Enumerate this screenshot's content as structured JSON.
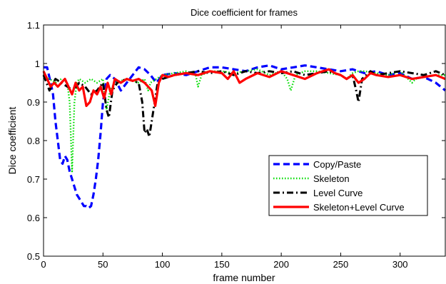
{
  "chart_data": {
    "type": "line",
    "title": "Dice coefficient for frames",
    "xlabel": "frame number",
    "ylabel": "Dice coefficient",
    "xlim": [
      0,
      338
    ],
    "ylim": [
      0.5,
      1.1
    ],
    "xticks": [
      0,
      50,
      100,
      150,
      200,
      250,
      300
    ],
    "yticks": [
      0.5,
      0.6,
      0.7,
      0.8,
      0.9,
      1,
      1.1
    ],
    "xtick_labels": [
      "0",
      "50",
      "100",
      "150",
      "200",
      "250",
      "300"
    ],
    "ytick_labels": [
      "0.5",
      "0.6",
      "0.7",
      "0.8",
      "0.9",
      "1",
      "1.1"
    ],
    "grid": false,
    "legend_position": "lower-right",
    "series": [
      {
        "name": "Copy/Paste",
        "color": "#0000ff",
        "style": "dashed",
        "x": [
          0,
          3,
          6,
          8,
          10,
          12,
          14,
          16,
          18,
          20,
          22,
          24,
          26,
          28,
          30,
          32,
          34,
          36,
          38,
          40,
          42,
          44,
          46,
          48,
          50,
          53,
          56,
          60,
          65,
          70,
          75,
          80,
          85,
          90,
          95,
          100,
          110,
          120,
          130,
          140,
          150,
          160,
          170,
          180,
          190,
          200,
          210,
          220,
          230,
          240,
          250,
          260,
          270,
          280,
          290,
          300,
          310,
          320,
          330,
          338
        ],
        "y": [
          0.99,
          0.99,
          0.95,
          0.92,
          0.85,
          0.8,
          0.75,
          0.74,
          0.76,
          0.75,
          0.72,
          0.7,
          0.68,
          0.66,
          0.65,
          0.64,
          0.63,
          0.63,
          0.625,
          0.63,
          0.66,
          0.7,
          0.75,
          0.82,
          0.9,
          0.96,
          0.97,
          0.96,
          0.93,
          0.95,
          0.97,
          0.99,
          0.985,
          0.97,
          0.95,
          0.97,
          0.975,
          0.97,
          0.98,
          0.99,
          0.99,
          0.985,
          0.98,
          0.99,
          0.995,
          0.985,
          0.99,
          0.995,
          0.99,
          0.985,
          0.98,
          0.985,
          0.975,
          0.98,
          0.97,
          0.975,
          0.96,
          0.965,
          0.95,
          0.93
        ]
      },
      {
        "name": "Skeleton",
        "color": "#00dd00",
        "style": "dotted",
        "x": [
          0,
          5,
          10,
          15,
          20,
          22,
          24,
          26,
          28,
          30,
          35,
          40,
          45,
          50,
          53,
          56,
          60,
          70,
          80,
          85,
          88,
          90,
          95,
          100,
          110,
          120,
          128,
          130,
          133,
          140,
          150,
          160,
          170,
          180,
          190,
          200,
          205,
          208,
          212,
          220,
          230,
          240,
          250,
          255,
          260,
          265,
          270,
          280,
          290,
          300,
          310,
          313,
          320,
          330,
          338
        ],
        "y": [
          0.97,
          0.96,
          0.95,
          0.96,
          0.95,
          0.9,
          0.72,
          0.9,
          0.95,
          0.96,
          0.95,
          0.96,
          0.95,
          0.96,
          0.88,
          0.93,
          0.95,
          0.96,
          0.95,
          0.96,
          0.93,
          0.95,
          0.96,
          0.97,
          0.975,
          0.98,
          0.97,
          0.94,
          0.97,
          0.98,
          0.98,
          0.975,
          0.98,
          0.985,
          0.97,
          0.98,
          0.96,
          0.93,
          0.97,
          0.98,
          0.98,
          0.975,
          0.97,
          0.96,
          0.975,
          0.98,
          0.98,
          0.975,
          0.97,
          0.98,
          0.95,
          0.96,
          0.965,
          0.97,
          0.97
        ]
      },
      {
        "name": "Level Curve",
        "color": "#000000",
        "style": "dashdot",
        "x": [
          0,
          5,
          10,
          15,
          20,
          25,
          30,
          35,
          40,
          45,
          50,
          53,
          55,
          58,
          62,
          70,
          80,
          83,
          85,
          87,
          89,
          91,
          93,
          96,
          100,
          110,
          120,
          130,
          140,
          150,
          160,
          170,
          180,
          190,
          200,
          210,
          220,
          230,
          240,
          250,
          255,
          260,
          263,
          265,
          268,
          275,
          280,
          290,
          300,
          310,
          320,
          330,
          338
        ],
        "y": [
          0.97,
          0.93,
          0.96,
          0.95,
          0.94,
          0.93,
          0.95,
          0.94,
          0.92,
          0.93,
          0.95,
          0.88,
          0.86,
          0.93,
          0.95,
          0.96,
          0.95,
          0.9,
          0.82,
          0.83,
          0.81,
          0.85,
          0.89,
          0.95,
          0.96,
          0.97,
          0.975,
          0.98,
          0.975,
          0.98,
          0.97,
          0.98,
          0.975,
          0.98,
          0.975,
          0.98,
          0.97,
          0.975,
          0.98,
          0.97,
          0.96,
          0.97,
          0.93,
          0.9,
          0.96,
          0.98,
          0.97,
          0.975,
          0.98,
          0.975,
          0.97,
          0.98,
          0.97
        ]
      },
      {
        "name": "Skeleton+Level Curve",
        "color": "#ff0000",
        "style": "solid",
        "x": [
          0,
          3,
          6,
          9,
          12,
          15,
          18,
          21,
          24,
          27,
          30,
          33,
          36,
          39,
          42,
          45,
          48,
          51,
          54,
          57,
          60,
          65,
          70,
          75,
          80,
          85,
          88,
          91,
          94,
          97,
          100,
          105,
          110,
          120,
          130,
          140,
          150,
          155,
          160,
          165,
          170,
          180,
          190,
          200,
          210,
          220,
          230,
          240,
          245,
          250,
          255,
          260,
          265,
          270,
          275,
          280,
          290,
          300,
          310,
          320,
          330,
          338
        ],
        "y": [
          0.98,
          0.96,
          0.94,
          0.95,
          0.94,
          0.95,
          0.96,
          0.94,
          0.92,
          0.95,
          0.93,
          0.94,
          0.89,
          0.9,
          0.93,
          0.92,
          0.94,
          0.91,
          0.95,
          0.92,
          0.96,
          0.95,
          0.96,
          0.955,
          0.96,
          0.95,
          0.94,
          0.93,
          0.89,
          0.95,
          0.97,
          0.965,
          0.97,
          0.975,
          0.97,
          0.98,
          0.975,
          0.96,
          0.98,
          0.95,
          0.96,
          0.975,
          0.965,
          0.98,
          0.97,
          0.96,
          0.975,
          0.985,
          0.975,
          0.97,
          0.96,
          0.97,
          0.95,
          0.96,
          0.975,
          0.97,
          0.965,
          0.97,
          0.96,
          0.965,
          0.97,
          0.96
        ]
      }
    ]
  }
}
